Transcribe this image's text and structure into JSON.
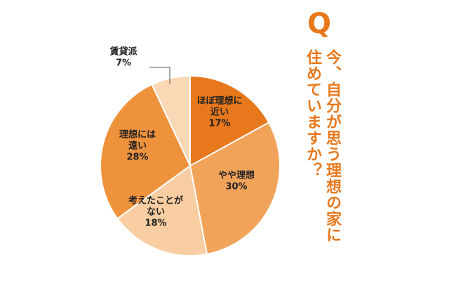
{
  "question": {
    "mark": "Q",
    "line1": "今、自分が思う理想の家に",
    "line2": "住めていますか？"
  },
  "chart_data": {
    "type": "pie",
    "start": "top",
    "direction": "clockwise",
    "slices": [
      {
        "label_lines": [
          "ほぼ理想に",
          "近い"
        ],
        "value_text": "17%",
        "value": 17,
        "color": "#e8781c"
      },
      {
        "label_lines": [
          "やや理想"
        ],
        "value_text": "30%",
        "value": 30,
        "color": "#f2a35a"
      },
      {
        "label_lines": [
          "考えたことが",
          "ない"
        ],
        "value_text": "18%",
        "value": 18,
        "color": "#f8cda2"
      },
      {
        "label_lines": [
          "理想には",
          "遠い"
        ],
        "value_text": "28%",
        "value": 28,
        "color": "#ef923c"
      },
      {
        "label_lines": [
          "賃貸派"
        ],
        "value_text": "7%",
        "value": 7,
        "color": "#fad7b5",
        "callout": true
      }
    ]
  }
}
